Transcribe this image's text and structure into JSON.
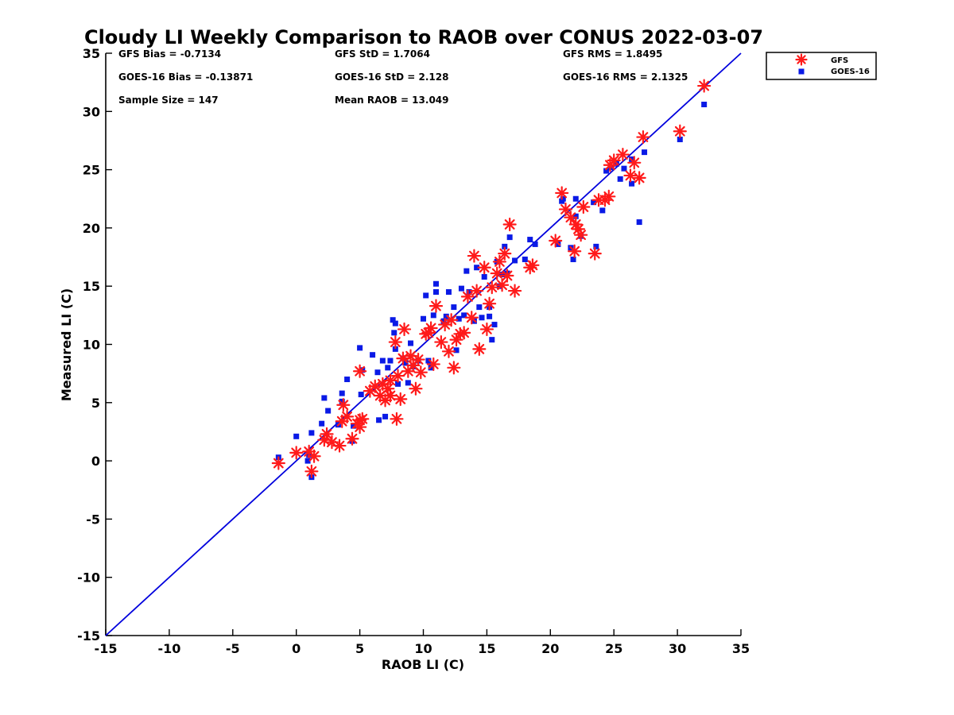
{
  "chart_data": {
    "type": "scatter",
    "title": "Cloudy LI Weekly Comparison to RAOB over CONUS 2022-03-07",
    "xlabel": "RAOB LI (C)",
    "ylabel": "Measured LI (C)",
    "xlim": [
      -15,
      35
    ],
    "ylim": [
      -15,
      35
    ],
    "xticks": [
      "-15",
      "-10",
      "-5",
      "0",
      "5",
      "10",
      "15",
      "20",
      "25",
      "30",
      "35"
    ],
    "yticks": [
      "-15",
      "-10",
      "-5",
      "0",
      "5",
      "10",
      "15",
      "20",
      "25",
      "30",
      "35"
    ],
    "grid": false,
    "legend_position": "top-right",
    "reference_line": {
      "x": [
        -15,
        35
      ],
      "y": [
        -15,
        35
      ],
      "color": "#0000dd"
    },
    "stats": [
      "GFS Bias = -0.7134",
      "GFS StD = 1.7064",
      "GFS RMS = 1.8495",
      "GOES-16 Bias = -0.13871",
      "GOES-16 StD = 2.128",
      "GOES-16 RMS = 2.1325",
      "Sample Size = 147",
      "Mean RAOB = 13.049"
    ],
    "series": [
      {
        "name": "GFS",
        "marker": "asterisk",
        "color": "#ff1a1a",
        "points": [
          [
            -1.4,
            -0.2
          ],
          [
            0.0,
            0.7
          ],
          [
            1.0,
            0.8
          ],
          [
            1.2,
            -0.9
          ],
          [
            1.4,
            0.4
          ],
          [
            2.2,
            1.8
          ],
          [
            2.4,
            2.3
          ],
          [
            2.8,
            1.6
          ],
          [
            3.4,
            1.3
          ],
          [
            3.6,
            3.4
          ],
          [
            3.7,
            4.8
          ],
          [
            4.0,
            3.8
          ],
          [
            4.4,
            1.9
          ],
          [
            4.8,
            3.2
          ],
          [
            5.0,
            3.5
          ],
          [
            5.0,
            2.9
          ],
          [
            5.2,
            3.6
          ],
          [
            5.0,
            7.7
          ],
          [
            5.8,
            6.0
          ],
          [
            6.2,
            6.4
          ],
          [
            6.6,
            5.6
          ],
          [
            6.8,
            6.6
          ],
          [
            7.0,
            5.2
          ],
          [
            7.2,
            6.2
          ],
          [
            7.4,
            5.6
          ],
          [
            7.4,
            6.9
          ],
          [
            7.8,
            10.2
          ],
          [
            7.9,
            3.6
          ],
          [
            8.0,
            7.3
          ],
          [
            8.2,
            5.3
          ],
          [
            8.4,
            8.8
          ],
          [
            8.5,
            11.3
          ],
          [
            8.8,
            7.7
          ],
          [
            9.0,
            9.0
          ],
          [
            9.2,
            8.2
          ],
          [
            9.4,
            6.2
          ],
          [
            9.6,
            8.7
          ],
          [
            9.8,
            7.6
          ],
          [
            10.2,
            10.9
          ],
          [
            10.4,
            11.0
          ],
          [
            10.6,
            11.4
          ],
          [
            10.8,
            8.3
          ],
          [
            11.0,
            13.3
          ],
          [
            11.4,
            10.2
          ],
          [
            11.7,
            11.7
          ],
          [
            12.0,
            9.4
          ],
          [
            12.2,
            12.1
          ],
          [
            12.4,
            8.0
          ],
          [
            12.6,
            10.4
          ],
          [
            12.9,
            10.9
          ],
          [
            13.2,
            11.0
          ],
          [
            13.5,
            14.1
          ],
          [
            13.8,
            12.3
          ],
          [
            14.0,
            17.6
          ],
          [
            14.2,
            14.6
          ],
          [
            14.4,
            9.6
          ],
          [
            14.8,
            16.6
          ],
          [
            15.0,
            11.3
          ],
          [
            15.2,
            13.5
          ],
          [
            15.4,
            14.9
          ],
          [
            15.8,
            16.1
          ],
          [
            16.0,
            17.1
          ],
          [
            16.2,
            15.1
          ],
          [
            16.4,
            17.8
          ],
          [
            16.6,
            15.9
          ],
          [
            16.8,
            20.3
          ],
          [
            17.2,
            14.6
          ],
          [
            18.4,
            16.6
          ],
          [
            18.6,
            16.8
          ],
          [
            20.4,
            18.9
          ],
          [
            20.9,
            23.0
          ],
          [
            21.2,
            21.6
          ],
          [
            21.6,
            20.9
          ],
          [
            21.9,
            18.0
          ],
          [
            22.0,
            20.3
          ],
          [
            22.2,
            19.9
          ],
          [
            22.4,
            19.4
          ],
          [
            22.6,
            21.8
          ],
          [
            23.5,
            17.8
          ],
          [
            23.8,
            22.4
          ],
          [
            24.3,
            22.4
          ],
          [
            24.6,
            22.7
          ],
          [
            24.7,
            25.4
          ],
          [
            25.0,
            25.8
          ],
          [
            25.7,
            26.3
          ],
          [
            26.3,
            24.5
          ],
          [
            26.6,
            25.6
          ],
          [
            27.0,
            24.3
          ],
          [
            27.3,
            27.8
          ],
          [
            30.2,
            28.3
          ],
          [
            32.1,
            32.2
          ]
        ]
      },
      {
        "name": "GOES-16",
        "marker": "square",
        "color": "#0a1ae6",
        "points": [
          [
            -1.4,
            0.3
          ],
          [
            0.0,
            2.1
          ],
          [
            0.9,
            0.0
          ],
          [
            1.0,
            0.5
          ],
          [
            1.2,
            -1.4
          ],
          [
            1.2,
            2.4
          ],
          [
            2.0,
            3.2
          ],
          [
            2.2,
            5.4
          ],
          [
            2.5,
            4.3
          ],
          [
            3.3,
            3.1
          ],
          [
            3.6,
            5.8
          ],
          [
            3.6,
            5.1
          ],
          [
            4.0,
            7.0
          ],
          [
            4.5,
            3.0
          ],
          [
            4.4,
            1.7
          ],
          [
            5.0,
            9.7
          ],
          [
            5.1,
            5.7
          ],
          [
            5.2,
            7.8
          ],
          [
            6.0,
            9.1
          ],
          [
            6.4,
            7.6
          ],
          [
            6.5,
            3.5
          ],
          [
            6.8,
            8.6
          ],
          [
            7.0,
            3.8
          ],
          [
            7.2,
            8.0
          ],
          [
            7.4,
            8.6
          ],
          [
            7.6,
            12.1
          ],
          [
            7.8,
            11.8
          ],
          [
            7.7,
            11.0
          ],
          [
            7.8,
            9.6
          ],
          [
            8.0,
            6.6
          ],
          [
            8.4,
            8.8
          ],
          [
            8.6,
            8.4
          ],
          [
            8.8,
            6.7
          ],
          [
            9.0,
            10.1
          ],
          [
            9.2,
            8.1
          ],
          [
            9.6,
            8.6
          ],
          [
            10.0,
            12.2
          ],
          [
            10.2,
            14.2
          ],
          [
            10.4,
            8.6
          ],
          [
            10.6,
            8.0
          ],
          [
            10.8,
            12.5
          ],
          [
            11.0,
            14.5
          ],
          [
            11.0,
            15.2
          ],
          [
            11.6,
            12.0
          ],
          [
            11.8,
            12.4
          ],
          [
            12.0,
            14.5
          ],
          [
            12.4,
            13.2
          ],
          [
            12.6,
            9.5
          ],
          [
            12.8,
            12.2
          ],
          [
            13.0,
            14.8
          ],
          [
            13.2,
            12.5
          ],
          [
            13.4,
            16.3
          ],
          [
            13.6,
            14.5
          ],
          [
            14.0,
            12.0
          ],
          [
            14.2,
            16.6
          ],
          [
            14.4,
            13.2
          ],
          [
            14.6,
            12.3
          ],
          [
            14.8,
            15.8
          ],
          [
            15.2,
            13.2
          ],
          [
            15.2,
            12.4
          ],
          [
            15.4,
            10.4
          ],
          [
            15.6,
            11.7
          ],
          [
            15.8,
            17.1
          ],
          [
            16.0,
            15.0
          ],
          [
            16.2,
            16.0
          ],
          [
            16.4,
            18.4
          ],
          [
            16.6,
            16.1
          ],
          [
            16.8,
            19.2
          ],
          [
            17.2,
            17.2
          ],
          [
            18.0,
            17.3
          ],
          [
            18.4,
            19.0
          ],
          [
            18.8,
            18.6
          ],
          [
            20.6,
            18.6
          ],
          [
            20.9,
            22.3
          ],
          [
            21.0,
            22.5
          ],
          [
            21.6,
            18.3
          ],
          [
            21.8,
            17.3
          ],
          [
            22.0,
            22.5
          ],
          [
            22.0,
            21.0
          ],
          [
            22.4,
            19.3
          ],
          [
            23.4,
            22.2
          ],
          [
            23.6,
            18.4
          ],
          [
            24.1,
            21.5
          ],
          [
            24.4,
            24.9
          ],
          [
            24.8,
            25.2
          ],
          [
            25.2,
            25.5
          ],
          [
            25.5,
            24.2
          ],
          [
            25.8,
            25.1
          ],
          [
            26.4,
            23.8
          ],
          [
            26.4,
            25.9
          ],
          [
            27.0,
            20.5
          ],
          [
            27.4,
            26.5
          ],
          [
            30.2,
            27.6
          ],
          [
            32.1,
            30.6
          ]
        ]
      }
    ]
  }
}
